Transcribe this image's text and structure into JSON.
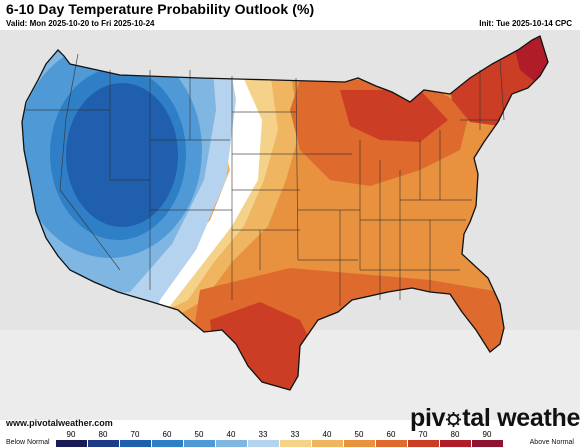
{
  "header": {
    "title": "6-10 Day Temperature Probability Outlook (%)",
    "valid": "Valid: Mon 2025-10-20 to Fri 2025-10-24",
    "init": "Init: Tue 2025-10-14 CPC"
  },
  "footer": {
    "website": "www.pivotalweather.com",
    "brand_left": "piv",
    "brand_right": "tal weather"
  },
  "legend": {
    "below_label": "Below Normal",
    "above_label": "Above Normal",
    "ticks": [
      "90",
      "80",
      "70",
      "60",
      "50",
      "40",
      "33",
      "33",
      "40",
      "50",
      "60",
      "70",
      "80",
      "90"
    ],
    "colors_below": [
      "#1a1b55",
      "#1f3a86",
      "#1f5fae",
      "#2f7fc7",
      "#4f9ad6",
      "#7fb6e2",
      "#b5d2ee"
    ],
    "colors_above": [
      "#f5d28a",
      "#f0b561",
      "#e8923f",
      "#de6a2e",
      "#cc3d26",
      "#b01c28",
      "#8e1530"
    ]
  },
  "map": {
    "background": "#d8d8d8",
    "colors": {
      "below_33": "#b5d2ee",
      "below_40": "#7fb6e2",
      "below_50": "#4f9ad6",
      "below_60": "#2f7fc7",
      "below_70": "#1f5fae",
      "normal": "#ffffff",
      "above_33": "#f5d28a",
      "above_40": "#f0b561",
      "above_50": "#e8923f",
      "above_60": "#de6a2e",
      "above_70": "#cc3d26",
      "above_80": "#b01c28"
    }
  }
}
